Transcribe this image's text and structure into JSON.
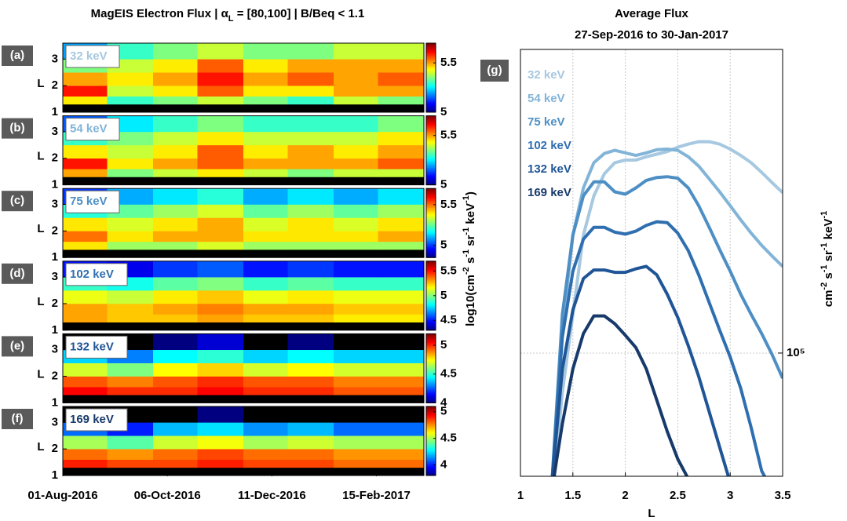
{
  "chart_data": [
    {
      "type": "heatmap",
      "title": [
        "MagEIS Electron Flux | α",
        "L",
        " = [80,100] | B/Beq < 1.1"
      ],
      "colorbar_label": [
        "log10(cm",
        "-2",
        " s",
        "-1",
        " sr",
        "-1",
        " keV",
        "-1",
        ")"
      ],
      "ylabel": "L",
      "ylim": [
        1,
        3.6
      ],
      "yticks": [
        1,
        2,
        3
      ],
      "xlim": [
        "2016-08-01",
        "2017-03-17"
      ],
      "xticks": [
        {
          "value": "2016-08-01",
          "label": "01-Aug-2016"
        },
        {
          "value": "2016-10-06",
          "label": "06-Oct-2016"
        },
        {
          "value": "2016-12-11",
          "label": "11-Dec-2016"
        },
        {
          "value": "2017-02-15",
          "label": "15-Feb-2017"
        }
      ],
      "colormap": "jet",
      "under_color": "#000000",
      "Lbins": [
        1,
        1.3,
        1.6,
        2.0,
        2.5,
        3.0,
        3.6
      ],
      "tbins": [
        "2016-08-01",
        "2016-08-29",
        "2016-09-27",
        "2016-10-25",
        "2016-11-23",
        "2016-12-21",
        "2017-01-19",
        "2017-02-16",
        "2017-03-17"
      ],
      "panels": [
        {
          "label": "(a)",
          "energy": "32 keV",
          "color": "#a6c8e0",
          "clim": [
            5,
            5.7
          ],
          "cticks": [
            5,
            5.5
          ],
          "z": [
            [
              4.6,
              4.6,
              4.6,
              4.6,
              4.6,
              4.6,
              4.6,
              4.6
            ],
            [
              5.45,
              5.3,
              5.35,
              5.4,
              5.35,
              5.3,
              5.4,
              5.35
            ],
            [
              5.6,
              5.4,
              5.45,
              5.55,
              5.45,
              5.45,
              5.5,
              5.5
            ],
            [
              5.5,
              5.45,
              5.5,
              5.6,
              5.5,
              5.55,
              5.5,
              5.55
            ],
            [
              5.35,
              5.4,
              5.45,
              5.55,
              5.45,
              5.5,
              5.5,
              5.5
            ],
            [
              5.2,
              5.3,
              5.35,
              5.4,
              5.35,
              5.35,
              5.4,
              5.4
            ]
          ]
        },
        {
          "label": "(b)",
          "energy": "54 keV",
          "color": "#82b4d8",
          "clim": [
            5,
            5.7
          ],
          "cticks": [
            5,
            5.5
          ],
          "z": [
            [
              4.6,
              4.6,
              4.6,
              4.6,
              4.6,
              4.6,
              4.6,
              4.6
            ],
            [
              5.5,
              5.35,
              5.4,
              5.45,
              5.4,
              5.35,
              5.4,
              5.4
            ],
            [
              5.6,
              5.45,
              5.5,
              5.55,
              5.5,
              5.5,
              5.5,
              5.55
            ],
            [
              5.45,
              5.4,
              5.45,
              5.55,
              5.45,
              5.5,
              5.45,
              5.5
            ],
            [
              5.3,
              5.35,
              5.4,
              5.45,
              5.4,
              5.4,
              5.4,
              5.45
            ],
            [
              5.15,
              5.25,
              5.3,
              5.35,
              5.3,
              5.3,
              5.3,
              5.35
            ]
          ]
        },
        {
          "label": "(c)",
          "energy": "75 keV",
          "color": "#4d8fc5",
          "clim": [
            4.85,
            5.7
          ],
          "cticks": [
            5,
            5.5
          ],
          "z": [
            [
              4.5,
              4.5,
              4.5,
              4.5,
              4.5,
              4.5,
              4.5,
              4.5
            ],
            [
              5.4,
              5.3,
              5.3,
              5.35,
              5.3,
              5.3,
              5.3,
              5.3
            ],
            [
              5.5,
              5.4,
              5.45,
              5.45,
              5.4,
              5.4,
              5.4,
              5.45
            ],
            [
              5.4,
              5.35,
              5.4,
              5.45,
              5.35,
              5.4,
              5.35,
              5.4
            ],
            [
              5.2,
              5.25,
              5.3,
              5.35,
              5.25,
              5.3,
              5.25,
              5.3
            ],
            [
              5.0,
              5.1,
              5.15,
              5.2,
              5.1,
              5.15,
              5.1,
              5.15
            ]
          ]
        },
        {
          "label": "(d)",
          "energy": "102 keV",
          "color": "#2f6fb0",
          "clim": [
            4.3,
            5.7
          ],
          "cticks": [
            4.5,
            5,
            5.5
          ],
          "z": [
            [
              4.1,
              4.1,
              4.1,
              4.1,
              4.1,
              4.1,
              4.1,
              4.1
            ],
            [
              5.3,
              5.25,
              5.25,
              5.3,
              5.25,
              5.25,
              5.2,
              5.2
            ],
            [
              5.3,
              5.25,
              5.3,
              5.35,
              5.3,
              5.3,
              5.25,
              5.25
            ],
            [
              5.15,
              5.1,
              5.2,
              5.25,
              5.15,
              5.2,
              5.15,
              5.15
            ],
            [
              4.9,
              4.85,
              4.95,
              5.0,
              4.9,
              4.95,
              4.9,
              4.9
            ],
            [
              4.5,
              4.45,
              4.55,
              4.6,
              4.5,
              4.55,
              4.5,
              4.5
            ]
          ]
        },
        {
          "label": "(e)",
          "energy": "132 keV",
          "color": "#1f5597",
          "clim": [
            4,
            5.2
          ],
          "cticks": [
            4,
            4.5,
            5
          ],
          "z": [
            [
              3.8,
              3.8,
              3.8,
              3.8,
              3.8,
              3.8,
              3.8,
              3.8
            ],
            [
              5.05,
              5.0,
              5.0,
              5.05,
              5.0,
              5.0,
              4.95,
              4.95
            ],
            [
              4.95,
              4.9,
              4.95,
              5.0,
              4.95,
              4.95,
              4.9,
              4.9
            ],
            [
              4.7,
              4.6,
              4.75,
              4.8,
              4.7,
              4.75,
              4.7,
              4.7
            ],
            [
              4.4,
              4.3,
              4.45,
              4.5,
              4.4,
              4.45,
              4.4,
              4.4
            ],
            [
              3.9,
              3.9,
              4.0,
              4.1,
              3.95,
              4.0,
              3.95,
              3.95
            ]
          ]
        },
        {
          "label": "(f)",
          "energy": "169 keV",
          "color": "#173a6b",
          "clim": [
            3.8,
            5.1
          ],
          "cticks": [
            4,
            4.5,
            5
          ],
          "z": [
            [
              3.6,
              3.6,
              3.6,
              3.6,
              3.6,
              3.6,
              3.6,
              3.6
            ],
            [
              4.9,
              4.85,
              4.85,
              4.9,
              4.85,
              4.85,
              4.8,
              4.8
            ],
            [
              4.8,
              4.75,
              4.8,
              4.85,
              4.8,
              4.8,
              4.75,
              4.75
            ],
            [
              4.5,
              4.4,
              4.55,
              4.6,
              4.5,
              4.55,
              4.5,
              4.5
            ],
            [
              4.1,
              4.0,
              4.2,
              4.25,
              4.15,
              4.2,
              4.1,
              4.1
            ],
            [
              3.7,
              3.7,
              3.75,
              3.8,
              3.7,
              3.75,
              3.7,
              3.7
            ]
          ]
        }
      ]
    },
    {
      "type": "line",
      "title": [
        "Average Flux",
        "27-Sep-2016 to 30-Jan-2017"
      ],
      "panel_label": "(g)",
      "xlabel": "L",
      "ylabel": [
        "cm",
        "-2",
        " s",
        "-1",
        " sr",
        "-1",
        " keV",
        "-1"
      ],
      "x": [
        1.3,
        1.4,
        1.5,
        1.6,
        1.7,
        1.8,
        1.9,
        2.0,
        2.1,
        2.2,
        2.3,
        2.4,
        2.5,
        2.6,
        2.7,
        2.8,
        2.9,
        3.0,
        3.1,
        3.2,
        3.3,
        3.4,
        3.5
      ],
      "xlim": [
        1,
        3.5
      ],
      "xticks": [
        1,
        1.5,
        2,
        2.5,
        3,
        3.5
      ],
      "ylim": [
        51700,
        508000
      ],
      "yscale": "log",
      "yticks": [
        {
          "value": 100000,
          "label": "10⁵"
        }
      ],
      "grid": true,
      "series": [
        {
          "name": "32 keV",
          "color": "#a6c8e0",
          "values": [
            45000,
            81100,
            123000,
            188000,
            232000,
            261000,
            277000,
            281000,
            281000,
            286000,
            290000,
            294000,
            301000,
            306000,
            310000,
            310000,
            306000,
            298000,
            288000,
            277000,
            263000,
            249000,
            236000
          ]
        },
        {
          "name": "54 keV",
          "color": "#82b4d8",
          "values": [
            50000,
            113000,
            188000,
            242000,
            277000,
            291000,
            296000,
            292000,
            288000,
            292000,
            297000,
            298000,
            296000,
            286000,
            272000,
            254000,
            237000,
            220000,
            204000,
            190000,
            178000,
            168000,
            159000
          ]
        },
        {
          "name": "75 keV",
          "color": "#4d8fc5",
          "values": [
            50000,
            123000,
            188000,
            232000,
            250000,
            250000,
            237000,
            234000,
            242000,
            252000,
            256000,
            257000,
            255000,
            242000,
            220000,
            196000,
            174000,
            155000,
            137000,
            123000,
            111000,
            99200,
            87400
          ]
        },
        {
          "name": "102 keV",
          "color": "#2f6fb0",
          "values": [
            50000,
            109000,
            155000,
            184000,
            196000,
            196000,
            191000,
            189000,
            192000,
            198000,
            202000,
            201000,
            190000,
            173000,
            152000,
            131000,
            113000,
            97900,
            82800,
            67100,
            53200,
            48000,
            null
          ]
        },
        {
          "name": "132 keV",
          "color": "#1f5597",
          "values": [
            50000,
            91900,
            126000,
            149000,
            156000,
            156000,
            154000,
            154000,
            157000,
            159000,
            152000,
            137000,
            121000,
            104000,
            88200,
            73000,
            60400,
            50000,
            null,
            null,
            null,
            null,
            null
          ]
        },
        {
          "name": "169 keV",
          "color": "#173a6b",
          "values": [
            48000,
            68500,
            91900,
            111000,
            122000,
            122000,
            117000,
            110000,
            103000,
            91900,
            77700,
            65700,
            56700,
            51000,
            null,
            null,
            null,
            null,
            null,
            null,
            null,
            null,
            null
          ]
        }
      ]
    }
  ]
}
